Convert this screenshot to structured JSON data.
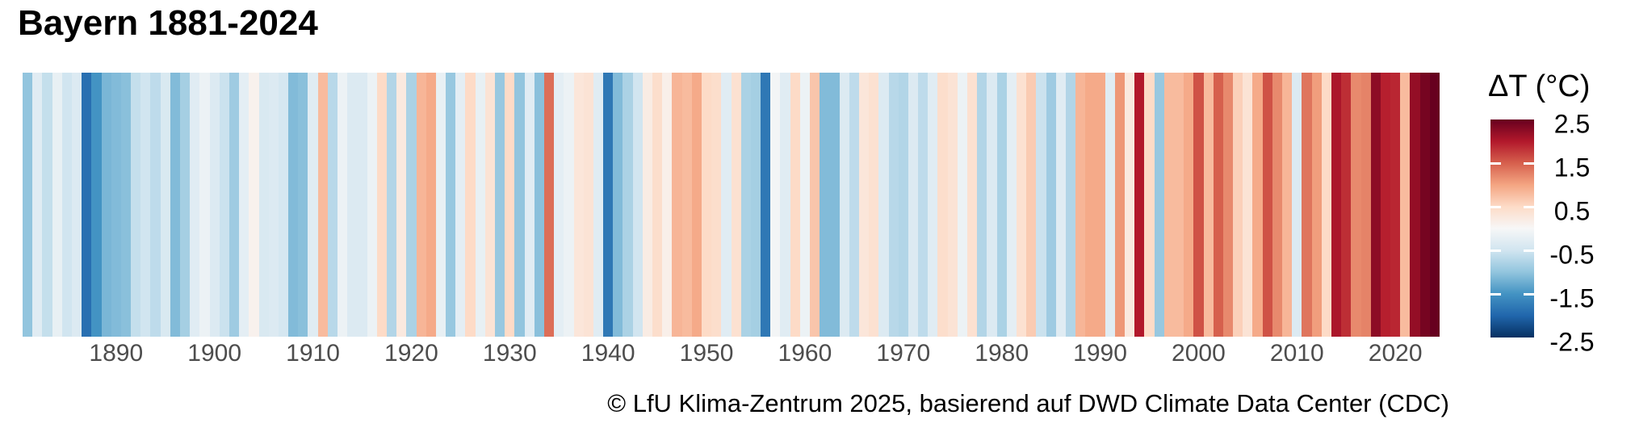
{
  "title": "Bayern 1881-2024",
  "caption": "© LfU Klima-Zentrum 2025, basierend auf DWD Climate Data Center (CDC)",
  "legend": {
    "title": "ΔT (°C)",
    "tick_labels": [
      "2.5",
      "1.5",
      "0.5",
      "-0.5",
      "-1.5",
      "-2.5"
    ],
    "tick_values": [
      2.5,
      1.5,
      0.5,
      -0.5,
      -1.5,
      -2.5
    ],
    "inner_tick_values": [
      1.5,
      0.5,
      -0.5,
      -1.5
    ]
  },
  "axis": {
    "tick_years": [
      1890,
      1900,
      1910,
      1920,
      1930,
      1940,
      1950,
      1960,
      1970,
      1980,
      1990,
      2000,
      2010,
      2020
    ]
  },
  "colors": {
    "background": "#ffffff",
    "axis_label": "#4d4d4d",
    "text": "#000000",
    "colorbar_tick_mark": "#ffffff"
  },
  "chart_data": {
    "type": "heatmap",
    "subtype": "warming-stripes",
    "title": "Bayern 1881-2024",
    "x_start_year": 1881,
    "x_end_year": 2024,
    "xlabel": "",
    "ylabel": "ΔT (°C)",
    "value_domain": [
      -2.5,
      2.5
    ],
    "legend_position": "right",
    "grid": false,
    "colormap": [
      {
        "value": -2.5,
        "hex": "#053061"
      },
      {
        "value": -2.0,
        "hex": "#2166ac"
      },
      {
        "value": -1.5,
        "hex": "#4393c3"
      },
      {
        "value": -1.0,
        "hex": "#92c5de"
      },
      {
        "value": -0.5,
        "hex": "#d1e5f0"
      },
      {
        "value": 0.0,
        "hex": "#f7f7f7"
      },
      {
        "value": 0.5,
        "hex": "#fddbc7"
      },
      {
        "value": 1.0,
        "hex": "#f4a582"
      },
      {
        "value": 1.5,
        "hex": "#d6604d"
      },
      {
        "value": 2.0,
        "hex": "#b2182b"
      },
      {
        "value": 2.5,
        "hex": "#67001f"
      }
    ],
    "values": [
      -1.0,
      -0.3,
      -0.6,
      -0.2,
      -0.5,
      -0.35,
      -1.9,
      -1.5,
      -1.15,
      -1.1,
      -1.05,
      -0.6,
      -0.5,
      -0.65,
      -0.4,
      -1.1,
      -0.85,
      -0.3,
      -0.15,
      -0.35,
      -0.55,
      -0.9,
      -0.25,
      0.1,
      -0.4,
      -0.35,
      -0.45,
      -1.1,
      -1.05,
      -0.3,
      0.8,
      -0.7,
      -0.15,
      -0.35,
      -0.35,
      -0.15,
      0.5,
      -0.75,
      0.25,
      -0.8,
      0.85,
      0.95,
      -0.2,
      -0.95,
      -0.25,
      0.5,
      -0.2,
      0.35,
      -0.95,
      0.5,
      -1.0,
      -0.3,
      -1.05,
      1.4,
      -0.25,
      -0.15,
      0.3,
      0.35,
      -0.3,
      -1.8,
      -1.1,
      -0.8,
      -0.5,
      0.2,
      0.45,
      0.15,
      0.85,
      0.8,
      0.95,
      0.5,
      0.45,
      -0.3,
      0.4,
      -0.8,
      -0.85,
      -1.8,
      -0.05,
      -0.3,
      0.5,
      -0.15,
      0.7,
      -1.1,
      -1.1,
      -0.35,
      -0.65,
      0.3,
      0.4,
      -0.35,
      -0.7,
      -0.75,
      -0.35,
      -0.65,
      -0.3,
      0.45,
      0.35,
      -0.15,
      0.4,
      -0.75,
      -0.35,
      -0.8,
      -0.25,
      0.4,
      0.65,
      -0.55,
      -0.9,
      -0.3,
      -0.75,
      0.85,
      0.95,
      0.95,
      -0.3,
      1.1,
      0.25,
      2.0,
      0.5,
      -0.95,
      0.8,
      0.8,
      0.95,
      1.6,
      0.8,
      1.5,
      1.2,
      0.6,
      0.35,
      0.95,
      1.6,
      1.2,
      0.85,
      -0.35,
      1.35,
      1.05,
      0.5,
      2.05,
      1.85,
      1.2,
      1.25,
      2.25,
      1.95,
      1.9,
      0.8,
      2.2,
      2.4,
      2.55
    ]
  }
}
